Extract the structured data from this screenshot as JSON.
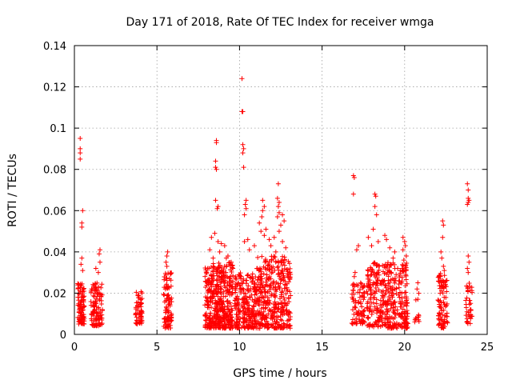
{
  "chart_data": {
    "type": "scatter",
    "title": "Day 171 of 2018, Rate Of TEC Index for receiver wmga",
    "xlabel": "GPS time / hours",
    "ylabel": "ROTI / TECUs",
    "xlim": [
      0,
      25
    ],
    "ylim": [
      0,
      0.14
    ],
    "xticks": [
      "0",
      "5",
      "10",
      "15",
      "20",
      "25"
    ],
    "yticks": [
      "0",
      "0.02",
      "0.04",
      "0.06",
      "0.08",
      "0.1",
      "0.12",
      "0.14"
    ],
    "grid": true,
    "marker": "+",
    "color": "#ff0000",
    "clusters": [
      {
        "x": [
          0.2,
          0.6
        ],
        "y": [
          0.005,
          0.025
        ],
        "n": 90
      },
      {
        "x": [
          1.0,
          1.7
        ],
        "y": [
          0.004,
          0.025
        ],
        "n": 110
      },
      {
        "x": [
          3.7,
          4.1
        ],
        "y": [
          0.005,
          0.021
        ],
        "n": 60
      },
      {
        "x": [
          5.4,
          5.9
        ],
        "y": [
          0.003,
          0.03
        ],
        "n": 90
      },
      {
        "x": [
          7.9,
          9.6
        ],
        "y": [
          0.003,
          0.035
        ],
        "n": 420
      },
      {
        "x": [
          9.7,
          11.0
        ],
        "y": [
          0.003,
          0.03
        ],
        "n": 240
      },
      {
        "x": [
          11.0,
          13.1
        ],
        "y": [
          0.003,
          0.038
        ],
        "n": 380
      },
      {
        "x": [
          16.8,
          17.6
        ],
        "y": [
          0.005,
          0.025
        ],
        "n": 80
      },
      {
        "x": [
          17.7,
          20.2
        ],
        "y": [
          0.003,
          0.035
        ],
        "n": 380
      },
      {
        "x": [
          20.6,
          20.9
        ],
        "y": [
          0.006,
          0.02
        ],
        "n": 12
      },
      {
        "x": [
          22.0,
          22.6
        ],
        "y": [
          0.003,
          0.03
        ],
        "n": 90
      },
      {
        "x": [
          23.7,
          24.1
        ],
        "y": [
          0.005,
          0.025
        ],
        "n": 40
      }
    ],
    "points": [
      {
        "x": 0.35,
        "y": 0.095
      },
      {
        "x": 0.35,
        "y": 0.09
      },
      {
        "x": 0.35,
        "y": 0.088
      },
      {
        "x": 0.35,
        "y": 0.085
      },
      {
        "x": 0.5,
        "y": 0.06
      },
      {
        "x": 0.45,
        "y": 0.054
      },
      {
        "x": 0.45,
        "y": 0.052
      },
      {
        "x": 0.45,
        "y": 0.037
      },
      {
        "x": 0.4,
        "y": 0.034
      },
      {
        "x": 0.5,
        "y": 0.031
      },
      {
        "x": 1.55,
        "y": 0.041
      },
      {
        "x": 1.5,
        "y": 0.039
      },
      {
        "x": 1.55,
        "y": 0.035
      },
      {
        "x": 1.3,
        "y": 0.032
      },
      {
        "x": 1.45,
        "y": 0.03
      },
      {
        "x": 5.65,
        "y": 0.04
      },
      {
        "x": 5.6,
        "y": 0.038
      },
      {
        "x": 5.55,
        "y": 0.035
      },
      {
        "x": 5.6,
        "y": 0.033
      },
      {
        "x": 8.6,
        "y": 0.094
      },
      {
        "x": 8.6,
        "y": 0.093
      },
      {
        "x": 8.55,
        "y": 0.084
      },
      {
        "x": 8.55,
        "y": 0.081
      },
      {
        "x": 8.6,
        "y": 0.08
      },
      {
        "x": 8.55,
        "y": 0.065
      },
      {
        "x": 8.7,
        "y": 0.062
      },
      {
        "x": 8.65,
        "y": 0.061
      },
      {
        "x": 8.5,
        "y": 0.049
      },
      {
        "x": 8.3,
        "y": 0.047
      },
      {
        "x": 8.7,
        "y": 0.045
      },
      {
        "x": 8.9,
        "y": 0.044
      },
      {
        "x": 9.1,
        "y": 0.043
      },
      {
        "x": 8.2,
        "y": 0.041
      },
      {
        "x": 8.8,
        "y": 0.04
      },
      {
        "x": 9.3,
        "y": 0.038
      },
      {
        "x": 8.4,
        "y": 0.037
      },
      {
        "x": 10.15,
        "y": 0.124
      },
      {
        "x": 10.2,
        "y": 0.108
      },
      {
        "x": 10.15,
        "y": 0.108
      },
      {
        "x": 10.2,
        "y": 0.092
      },
      {
        "x": 10.25,
        "y": 0.09
      },
      {
        "x": 10.2,
        "y": 0.088
      },
      {
        "x": 10.25,
        "y": 0.081
      },
      {
        "x": 10.4,
        "y": 0.065
      },
      {
        "x": 10.35,
        "y": 0.063
      },
      {
        "x": 10.4,
        "y": 0.061
      },
      {
        "x": 10.3,
        "y": 0.058
      },
      {
        "x": 10.5,
        "y": 0.046
      },
      {
        "x": 10.3,
        "y": 0.045
      },
      {
        "x": 10.9,
        "y": 0.043
      },
      {
        "x": 10.6,
        "y": 0.041
      },
      {
        "x": 11.4,
        "y": 0.065
      },
      {
        "x": 11.5,
        "y": 0.062
      },
      {
        "x": 11.4,
        "y": 0.06
      },
      {
        "x": 11.35,
        "y": 0.057
      },
      {
        "x": 11.2,
        "y": 0.054
      },
      {
        "x": 11.6,
        "y": 0.051
      },
      {
        "x": 11.3,
        "y": 0.05
      },
      {
        "x": 11.5,
        "y": 0.048
      },
      {
        "x": 12.35,
        "y": 0.073
      },
      {
        "x": 12.3,
        "y": 0.066
      },
      {
        "x": 12.4,
        "y": 0.064
      },
      {
        "x": 12.35,
        "y": 0.062
      },
      {
        "x": 12.4,
        "y": 0.059
      },
      {
        "x": 12.6,
        "y": 0.058
      },
      {
        "x": 12.3,
        "y": 0.057
      },
      {
        "x": 12.7,
        "y": 0.055
      },
      {
        "x": 12.5,
        "y": 0.053
      },
      {
        "x": 12.4,
        "y": 0.05
      },
      {
        "x": 12.1,
        "y": 0.047
      },
      {
        "x": 12.6,
        "y": 0.045
      },
      {
        "x": 11.8,
        "y": 0.046
      },
      {
        "x": 11.9,
        "y": 0.043
      },
      {
        "x": 12.8,
        "y": 0.042
      },
      {
        "x": 12.2,
        "y": 0.04
      },
      {
        "x": 9.5,
        "y": 0.035
      },
      {
        "x": 9.6,
        "y": 0.032
      },
      {
        "x": 9.2,
        "y": 0.037
      },
      {
        "x": 16.9,
        "y": 0.077
      },
      {
        "x": 16.95,
        "y": 0.076
      },
      {
        "x": 16.9,
        "y": 0.068
      },
      {
        "x": 17.2,
        "y": 0.043
      },
      {
        "x": 17.1,
        "y": 0.041
      },
      {
        "x": 17.0,
        "y": 0.03
      },
      {
        "x": 16.95,
        "y": 0.028
      },
      {
        "x": 18.2,
        "y": 0.068
      },
      {
        "x": 18.25,
        "y": 0.067
      },
      {
        "x": 18.2,
        "y": 0.062
      },
      {
        "x": 18.3,
        "y": 0.058
      },
      {
        "x": 18.1,
        "y": 0.051
      },
      {
        "x": 17.8,
        "y": 0.047
      },
      {
        "x": 18.4,
        "y": 0.045
      },
      {
        "x": 18.0,
        "y": 0.043
      },
      {
        "x": 18.8,
        "y": 0.048
      },
      {
        "x": 18.9,
        "y": 0.046
      },
      {
        "x": 19.1,
        "y": 0.042
      },
      {
        "x": 19.4,
        "y": 0.04
      },
      {
        "x": 19.9,
        "y": 0.047
      },
      {
        "x": 20.0,
        "y": 0.045
      },
      {
        "x": 20.05,
        "y": 0.043
      },
      {
        "x": 19.9,
        "y": 0.041
      },
      {
        "x": 20.1,
        "y": 0.038
      },
      {
        "x": 19.95,
        "y": 0.036
      },
      {
        "x": 20.05,
        "y": 0.033
      },
      {
        "x": 19.3,
        "y": 0.037
      },
      {
        "x": 20.8,
        "y": 0.025
      },
      {
        "x": 20.75,
        "y": 0.022
      },
      {
        "x": 20.8,
        "y": 0.017
      },
      {
        "x": 22.3,
        "y": 0.055
      },
      {
        "x": 22.35,
        "y": 0.053
      },
      {
        "x": 22.3,
        "y": 0.047
      },
      {
        "x": 22.2,
        "y": 0.04
      },
      {
        "x": 22.25,
        "y": 0.037
      },
      {
        "x": 22.35,
        "y": 0.033
      },
      {
        "x": 22.4,
        "y": 0.031
      },
      {
        "x": 23.8,
        "y": 0.073
      },
      {
        "x": 23.85,
        "y": 0.07
      },
      {
        "x": 23.85,
        "y": 0.066
      },
      {
        "x": 23.9,
        "y": 0.065
      },
      {
        "x": 23.85,
        "y": 0.064
      },
      {
        "x": 23.8,
        "y": 0.063
      },
      {
        "x": 23.85,
        "y": 0.038
      },
      {
        "x": 23.9,
        "y": 0.035
      },
      {
        "x": 23.8,
        "y": 0.032
      },
      {
        "x": 23.85,
        "y": 0.03
      }
    ]
  }
}
